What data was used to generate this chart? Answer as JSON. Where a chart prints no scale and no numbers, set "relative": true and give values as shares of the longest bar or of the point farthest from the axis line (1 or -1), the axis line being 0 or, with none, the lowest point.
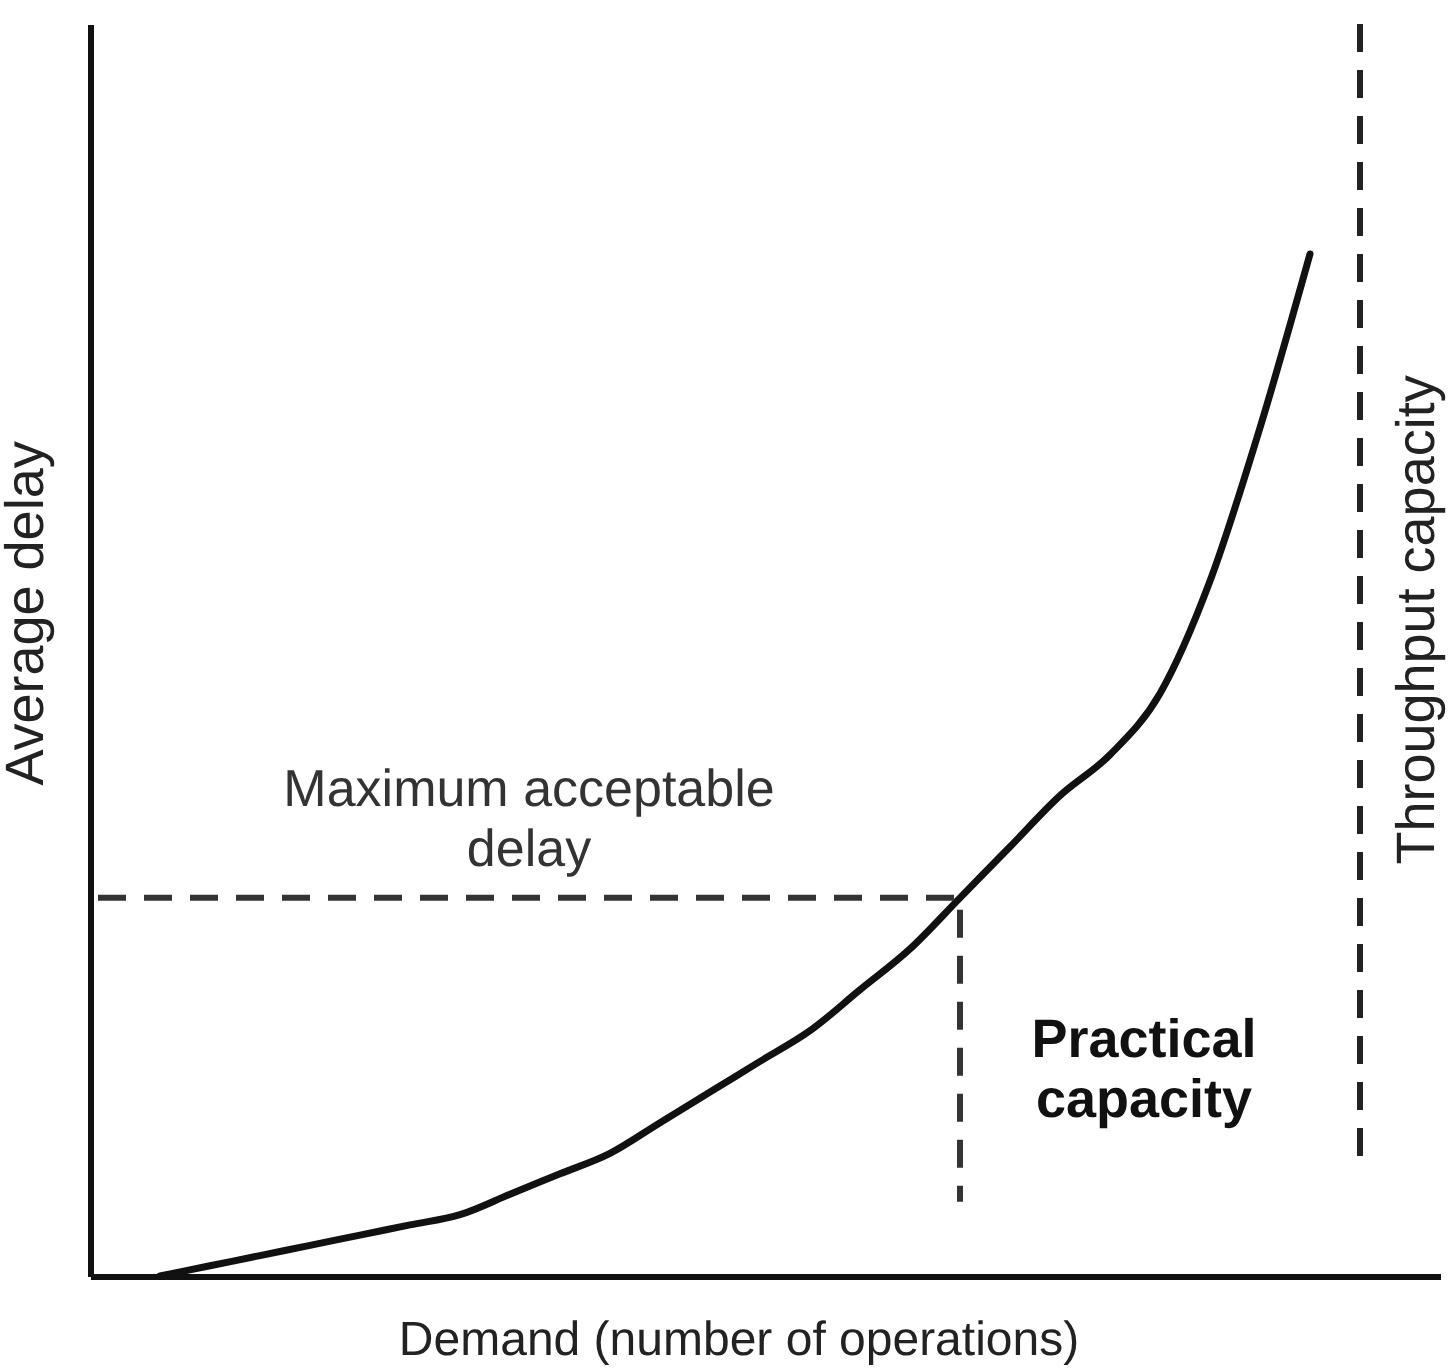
{
  "chart_data": {
    "type": "line",
    "xlabel": "Demand (number of operations)",
    "ylabel": "Average delay",
    "relative": true,
    "categories": [
      null,
      null,
      null,
      null,
      null,
      null,
      null,
      null,
      null,
      null,
      null,
      null,
      null,
      null,
      null,
      null,
      null,
      null,
      null,
      null,
      null,
      null,
      null,
      null,
      null
    ],
    "values": [
      0,
      0.01,
      0.02,
      0.03,
      0.04,
      0.05,
      0.06,
      0.08,
      0.1,
      0.12,
      0.15,
      0.18,
      0.21,
      0.24,
      0.28,
      0.32,
      0.37,
      0.42,
      0.47,
      0.51,
      0.57,
      0.68,
      0.83,
      1,
      null
    ],
    "color": "#111111",
    "line_style": "solid",
    "ref_lines": [
      {
        "axis": "y",
        "value": 0.37,
        "label": "Maximum acceptable delay",
        "color": "#333333",
        "line_style": "dashed"
      }
    ],
    "annotations": [
      "Practical capacity",
      "Throughput capacity"
    ]
  }
}
